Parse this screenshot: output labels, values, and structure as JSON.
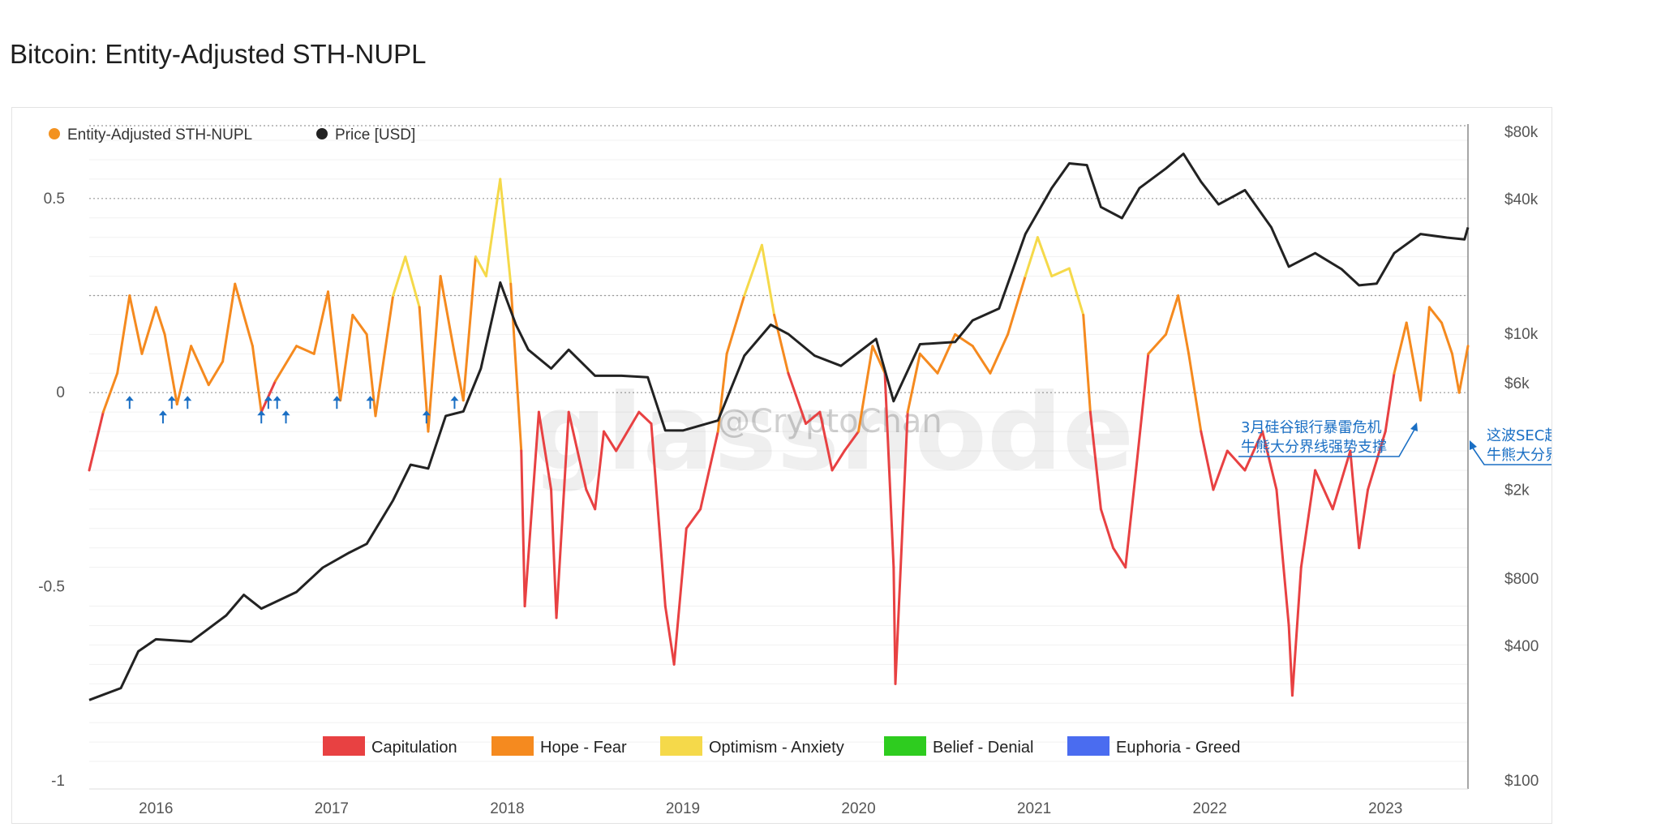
{
  "page_title": "Bitcoin: Entity-Adjusted STH-NUPL",
  "watermark": "glassnode",
  "credit": "@CryptoChan",
  "colors": {
    "price": "#222222",
    "sth_nupl": "#f39220",
    "capitulation": "#e84142",
    "hope_fear": "#f58a1f",
    "optimism_anxiety": "#f5d94a",
    "belief_denial": "#2ecc1f",
    "euphoria_greed": "#4a6cf0",
    "annotation": "#1a6fc4"
  },
  "chart_data": {
    "type": "line",
    "title": "Bitcoin: Entity-Adjusted STH-NUPL",
    "x_ticks": [
      "2016",
      "2017",
      "2018",
      "2019",
      "2020",
      "2021",
      "2022",
      "2023"
    ],
    "x_range": [
      "2015-08",
      "2023-06"
    ],
    "y_left": {
      "range": [
        -1,
        0.65
      ],
      "ticks": [
        "0.5",
        "0",
        "-0.5",
        "-1"
      ]
    },
    "y_right": {
      "scale": "log",
      "range": [
        100,
        80000
      ],
      "ticks": [
        "$80k",
        "$40k",
        "$10k",
        "$6k",
        "$2k",
        "$800",
        "$400",
        "$100"
      ]
    },
    "top_legend": [
      {
        "label": "Entity-Adjusted STH-NUPL",
        "color": "#f39220"
      },
      {
        "label": "Price [USD]",
        "color": "#222222"
      }
    ],
    "zone_legend": [
      {
        "label": "Capitulation",
        "color": "#e84142"
      },
      {
        "label": "Hope - Fear",
        "color": "#f58a1f"
      },
      {
        "label": "Optimism - Anxiety",
        "color": "#f5d94a"
      },
      {
        "label": "Belief - Denial",
        "color": "#2ecc1f"
      },
      {
        "label": "Euphoria - Greed",
        "color": "#4a6cf0"
      }
    ],
    "series": [
      {
        "name": "Entity-Adjusted STH-NUPL",
        "points": [
          [
            "2015.62",
            -0.2
          ],
          [
            "2015.70",
            -0.05
          ],
          [
            "2015.78",
            0.05
          ],
          [
            "2015.85",
            0.25
          ],
          [
            "2015.92",
            0.1
          ],
          [
            "2016.00",
            0.22
          ],
          [
            "2016.05",
            0.15
          ],
          [
            "2016.12",
            -0.03
          ],
          [
            "2016.20",
            0.12
          ],
          [
            "2016.30",
            0.02
          ],
          [
            "2016.38",
            0.08
          ],
          [
            "2016.45",
            0.28
          ],
          [
            "2016.55",
            0.12
          ],
          [
            "2016.60",
            -0.05
          ],
          [
            "2016.68",
            0.03
          ],
          [
            "2016.80",
            0.12
          ],
          [
            "2016.90",
            0.1
          ],
          [
            "2016.98",
            0.26
          ],
          [
            "2017.05",
            -0.02
          ],
          [
            "2017.12",
            0.2
          ],
          [
            "2017.20",
            0.15
          ],
          [
            "2017.25",
            -0.06
          ],
          [
            "2017.35",
            0.25
          ],
          [
            "2017.42",
            0.35
          ],
          [
            "2017.50",
            0.22
          ],
          [
            "2017.55",
            -0.1
          ],
          [
            "2017.62",
            0.3
          ],
          [
            "2017.70",
            0.1
          ],
          [
            "2017.75",
            -0.02
          ],
          [
            "2017.82",
            0.35
          ],
          [
            "2017.88",
            0.3
          ],
          [
            "2017.96",
            0.55
          ],
          [
            "2018.02",
            0.28
          ],
          [
            "2018.08",
            -0.15
          ],
          [
            "2018.10",
            -0.55
          ],
          [
            "2018.18",
            -0.05
          ],
          [
            "2018.25",
            -0.25
          ],
          [
            "2018.28",
            -0.58
          ],
          [
            "2018.35",
            -0.05
          ],
          [
            "2018.45",
            -0.25
          ],
          [
            "2018.50",
            -0.3
          ],
          [
            "2018.55",
            -0.1
          ],
          [
            "2018.62",
            -0.15
          ],
          [
            "2018.75",
            -0.05
          ],
          [
            "2018.82",
            -0.08
          ],
          [
            "2018.90",
            -0.55
          ],
          [
            "2018.95",
            -0.7
          ],
          [
            "2019.02",
            -0.35
          ],
          [
            "2019.10",
            -0.3
          ],
          [
            "2019.20",
            -0.1
          ],
          [
            "2019.25",
            0.1
          ],
          [
            "2019.35",
            0.25
          ],
          [
            "2019.45",
            0.38
          ],
          [
            "2019.52",
            0.2
          ],
          [
            "2019.60",
            0.05
          ],
          [
            "2019.70",
            -0.08
          ],
          [
            "2019.78",
            -0.05
          ],
          [
            "2019.85",
            -0.2
          ],
          [
            "2019.92",
            -0.15
          ],
          [
            "2020.00",
            -0.1
          ],
          [
            "2020.08",
            0.12
          ],
          [
            "2020.15",
            0.05
          ],
          [
            "2020.20",
            -0.45
          ],
          [
            "2020.21",
            -0.75
          ],
          [
            "2020.28",
            -0.05
          ],
          [
            "2020.35",
            0.1
          ],
          [
            "2020.45",
            0.05
          ],
          [
            "2020.55",
            0.15
          ],
          [
            "2020.65",
            0.12
          ],
          [
            "2020.75",
            0.05
          ],
          [
            "2020.85",
            0.15
          ],
          [
            "2020.95",
            0.3
          ],
          [
            "2021.02",
            0.4
          ],
          [
            "2021.10",
            0.3
          ],
          [
            "2021.20",
            0.32
          ],
          [
            "2021.28",
            0.2
          ],
          [
            "2021.32",
            -0.05
          ],
          [
            "2021.38",
            -0.3
          ],
          [
            "2021.45",
            -0.4
          ],
          [
            "2021.52",
            -0.45
          ],
          [
            "2021.58",
            -0.2
          ],
          [
            "2021.65",
            0.1
          ],
          [
            "2021.75",
            0.15
          ],
          [
            "2021.82",
            0.25
          ],
          [
            "2021.88",
            0.1
          ],
          [
            "2021.95",
            -0.1
          ],
          [
            "2022.02",
            -0.25
          ],
          [
            "2022.10",
            -0.15
          ],
          [
            "2022.20",
            -0.2
          ],
          [
            "2022.30",
            -0.1
          ],
          [
            "2022.38",
            -0.25
          ],
          [
            "2022.45",
            -0.6
          ],
          [
            "2022.47",
            -0.78
          ],
          [
            "2022.52",
            -0.45
          ],
          [
            "2022.60",
            -0.2
          ],
          [
            "2022.70",
            -0.3
          ],
          [
            "2022.80",
            -0.15
          ],
          [
            "2022.85",
            -0.4
          ],
          [
            "2022.90",
            -0.25
          ],
          [
            "2023.00",
            -0.1
          ],
          [
            "2023.05",
            0.05
          ],
          [
            "2023.12",
            0.18
          ],
          [
            "2023.20",
            -0.02
          ],
          [
            "2023.25",
            0.22
          ],
          [
            "2023.32",
            0.18
          ],
          [
            "2023.38",
            0.1
          ],
          [
            "2023.42",
            0.0
          ],
          [
            "2023.47",
            0.12
          ]
        ]
      },
      {
        "name": "Price [USD]",
        "points": [
          [
            "2015.62",
            230
          ],
          [
            "2015.80",
            260
          ],
          [
            "2015.90",
            380
          ],
          [
            "2016.00",
            430
          ],
          [
            "2016.20",
            420
          ],
          [
            "2016.40",
            550
          ],
          [
            "2016.50",
            680
          ],
          [
            "2016.60",
            590
          ],
          [
            "2016.80",
            700
          ],
          [
            "2016.95",
            900
          ],
          [
            "2017.10",
            1050
          ],
          [
            "2017.20",
            1150
          ],
          [
            "2017.35",
            1800
          ],
          [
            "2017.45",
            2600
          ],
          [
            "2017.55",
            2500
          ],
          [
            "2017.65",
            4300
          ],
          [
            "2017.75",
            4500
          ],
          [
            "2017.85",
            7000
          ],
          [
            "2017.96",
            17000
          ],
          [
            "2018.05",
            11000
          ],
          [
            "2018.12",
            8500
          ],
          [
            "2018.25",
            7000
          ],
          [
            "2018.35",
            8500
          ],
          [
            "2018.50",
            6500
          ],
          [
            "2018.65",
            6500
          ],
          [
            "2018.80",
            6400
          ],
          [
            "2018.90",
            3700
          ],
          [
            "2019.00",
            3700
          ],
          [
            "2019.20",
            4100
          ],
          [
            "2019.35",
            8000
          ],
          [
            "2019.50",
            11000
          ],
          [
            "2019.60",
            10000
          ],
          [
            "2019.75",
            8000
          ],
          [
            "2019.90",
            7200
          ],
          [
            "2020.10",
            9500
          ],
          [
            "2020.20",
            5000
          ],
          [
            "2020.35",
            9000
          ],
          [
            "2020.55",
            9200
          ],
          [
            "2020.65",
            11500
          ],
          [
            "2020.80",
            13000
          ],
          [
            "2020.95",
            28000
          ],
          [
            "2021.10",
            45000
          ],
          [
            "2021.20",
            58000
          ],
          [
            "2021.30",
            57000
          ],
          [
            "2021.38",
            37000
          ],
          [
            "2021.50",
            33000
          ],
          [
            "2021.60",
            45000
          ],
          [
            "2021.75",
            55000
          ],
          [
            "2021.85",
            64000
          ],
          [
            "2021.95",
            48000
          ],
          [
            "2022.05",
            38000
          ],
          [
            "2022.20",
            44000
          ],
          [
            "2022.35",
            30000
          ],
          [
            "2022.45",
            20000
          ],
          [
            "2022.60",
            23000
          ],
          [
            "2022.75",
            19500
          ],
          [
            "2022.85",
            16500
          ],
          [
            "2022.95",
            16800
          ],
          [
            "2023.05",
            23000
          ],
          [
            "2023.20",
            28000
          ],
          [
            "2023.35",
            27000
          ],
          [
            "2023.45",
            26500
          ],
          [
            "2023.47",
            30000
          ]
        ]
      }
    ],
    "annotations": [
      {
        "lines": [
          "3月硅谷银行暴雷危机",
          "牛熊大分界线强势支撑"
        ]
      },
      {
        "lines": [
          "这波SEC起诉币安FUD",
          "牛熊大分界线强势支撑"
        ]
      }
    ],
    "support_arrows_years": [
      "2015.85",
      "2016.04",
      "2016.09",
      "2016.18",
      "2016.60",
      "2016.64",
      "2016.69",
      "2016.74",
      "2017.03",
      "2017.22",
      "2017.54",
      "2017.70"
    ]
  }
}
